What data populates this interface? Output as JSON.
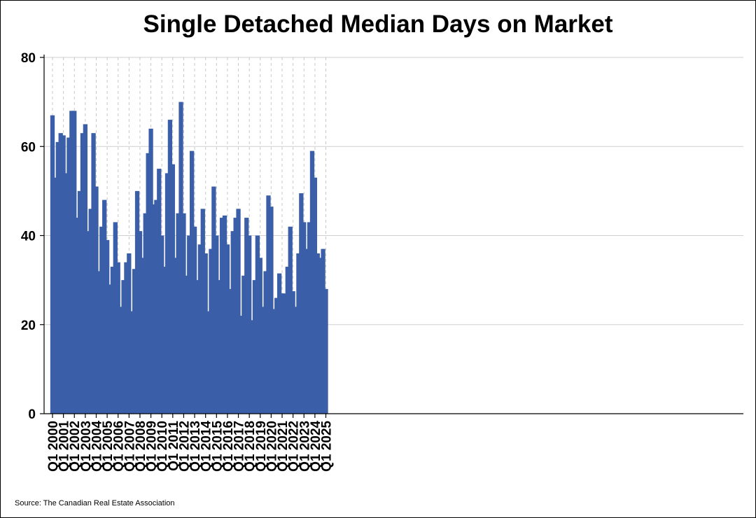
{
  "chart_data": {
    "type": "bar",
    "title": "Single Detached Median Days on Market",
    "source": "Source: The Canadian Real Estate Association",
    "xlabel": "",
    "ylabel": "",
    "ylim": [
      0,
      80
    ],
    "yticks": [
      0,
      20,
      40,
      60,
      80
    ],
    "x_tick_labels": [
      "Q1 2000",
      "Q1 2001",
      "Q1 2002",
      "Q1 2003",
      "Q1 2004",
      "Q1 2005",
      "Q1 2006",
      "Q1 2007",
      "Q1 2008",
      "Q1 2009",
      "Q1 2010",
      "Q1 2011",
      "Q1 2012",
      "Q1 2013",
      "Q1 2014",
      "Q1 2015",
      "Q1 2016",
      "Q1 2017",
      "Q1 2018",
      "Q1 2019",
      "Q1 2020",
      "Q1 2021",
      "Q1 2022",
      "Q1 2023",
      "Q1 2024",
      "Q1 2025"
    ],
    "bar_color": "#3a5ea8",
    "grid": "horizontal solid, vertical dashed at Q1",
    "values": [
      67,
      53,
      61,
      63,
      62.5,
      54,
      62,
      68,
      68,
      44,
      50,
      63,
      65,
      41,
      46,
      63,
      51,
      32,
      42,
      48,
      39,
      29,
      33,
      43,
      34,
      24,
      30,
      34,
      36,
      23,
      32.5,
      50,
      41,
      35,
      45,
      58.5,
      64,
      47,
      48,
      55,
      40,
      33,
      54,
      66,
      56,
      35,
      45,
      70,
      45,
      31,
      40,
      59,
      42,
      30,
      38,
      46,
      36,
      23,
      37,
      51,
      40,
      30,
      44,
      44.5,
      38,
      28,
      41,
      44,
      46,
      22,
      31,
      44,
      40,
      21,
      30,
      40,
      35,
      24,
      32,
      49,
      46.5,
      23.5,
      26,
      31.5,
      27,
      27,
      33,
      42,
      27.5,
      24,
      36,
      49.5,
      43,
      37,
      43,
      59,
      53,
      36,
      35,
      37,
      28
    ]
  }
}
